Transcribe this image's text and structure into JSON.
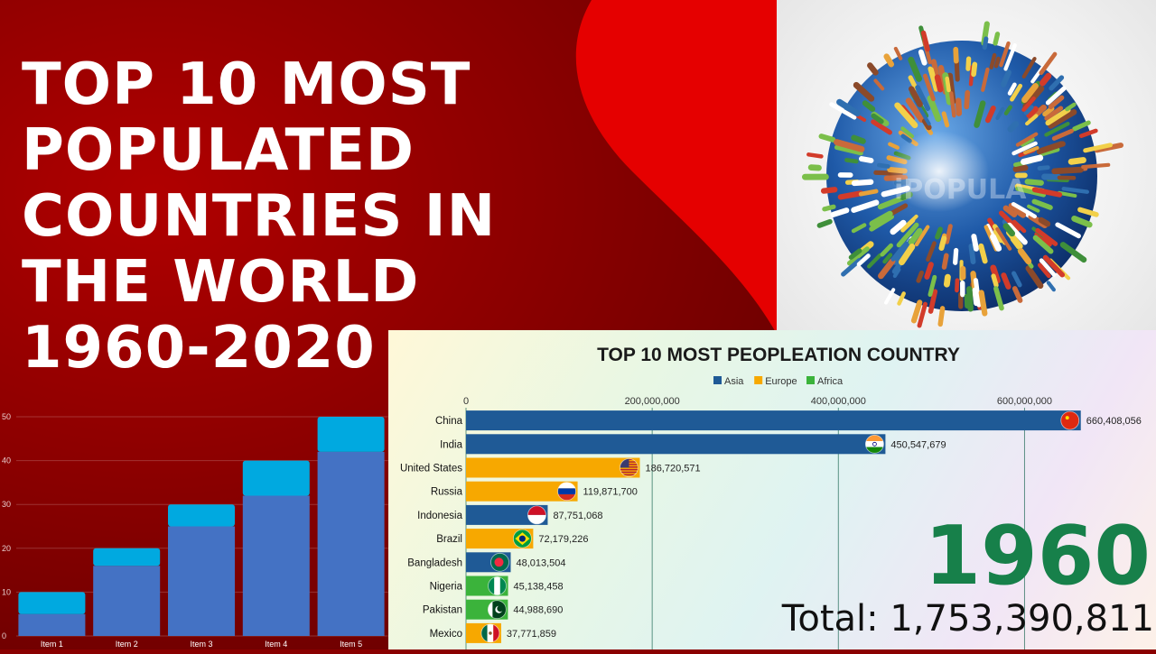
{
  "page": {
    "title": "TOP 10 MOST POPULATED COUNTRIES IN THE WORLD 1960-2020",
    "colors": {
      "accent_red": "#e00000",
      "dark_red": "#8a0000"
    }
  },
  "globe": {
    "watermark": "iPOPULA"
  },
  "chart_data": [
    {
      "type": "bar",
      "orientation": "vertical",
      "stacked": true,
      "categories": [
        "Item 1",
        "Item 2",
        "Item 3",
        "Item 4",
        "Item 5"
      ],
      "series": [
        {
          "values": [
            5,
            16,
            25,
            32,
            42
          ],
          "color": "#4472c4"
        },
        {
          "values": [
            5,
            4,
            5,
            8,
            8
          ],
          "color": "#00a9e0"
        }
      ],
      "yticks": [
        0,
        10,
        20,
        30,
        40,
        50
      ],
      "ylim": [
        0,
        50
      ],
      "grid": true
    },
    {
      "type": "bar",
      "orientation": "horizontal",
      "title": "TOP 10 MOST PEOPLEATION COUNTRY",
      "legend": [
        {
          "name": "Asia",
          "color": "#1f5a96"
        },
        {
          "name": "Europe",
          "color": "#f7a800"
        },
        {
          "name": "Africa",
          "color": "#3bb33b"
        }
      ],
      "legend_position": "top-center",
      "xticks": [
        {
          "value": 0,
          "label": "0"
        },
        {
          "value": 200000000,
          "label": "200,000,000"
        },
        {
          "value": 400000000,
          "label": "400,000,000"
        },
        {
          "value": 600000000,
          "label": "600,000,000"
        }
      ],
      "xlim": [
        0,
        650000000
      ],
      "grid": true,
      "rows": [
        {
          "country": "China",
          "value": 660408056,
          "label": "660,408,056",
          "color": "#1f5a96",
          "flag": "china-flag"
        },
        {
          "country": "India",
          "value": 450547679,
          "label": "450,547,679",
          "color": "#1f5a96",
          "flag": "india-flag"
        },
        {
          "country": "United States",
          "value": 186720571,
          "label": "186,720,571",
          "color": "#f7a800",
          "flag": "usa-flag"
        },
        {
          "country": "Russia",
          "value": 119871700,
          "label": "119,871,700",
          "color": "#f7a800",
          "flag": "russia-flag"
        },
        {
          "country": "Indonesia",
          "value": 87751068,
          "label": "87,751,068",
          "color": "#1f5a96",
          "flag": "indonesia-flag"
        },
        {
          "country": "Brazil",
          "value": 72179226,
          "label": "72,179,226",
          "color": "#f7a800",
          "flag": "brazil-flag"
        },
        {
          "country": "Bangladesh",
          "value": 48013504,
          "label": "48,013,504",
          "color": "#1f5a96",
          "flag": "bangladesh-flag"
        },
        {
          "country": "Nigeria",
          "value": 45138458,
          "label": "45,138,458",
          "color": "#3bb33b",
          "flag": "nigeria-flag"
        },
        {
          "country": "Pakistan",
          "value": 44988690,
          "label": "44,988,690",
          "color": "#3bb33b",
          "flag": "pakistan-flag"
        },
        {
          "country": "Mexico",
          "value": 37771859,
          "label": "37,771,859",
          "color": "#f7a800",
          "flag": "mexico-flag"
        }
      ],
      "year": "1960",
      "total": "Total: 1,753,390,811"
    }
  ]
}
